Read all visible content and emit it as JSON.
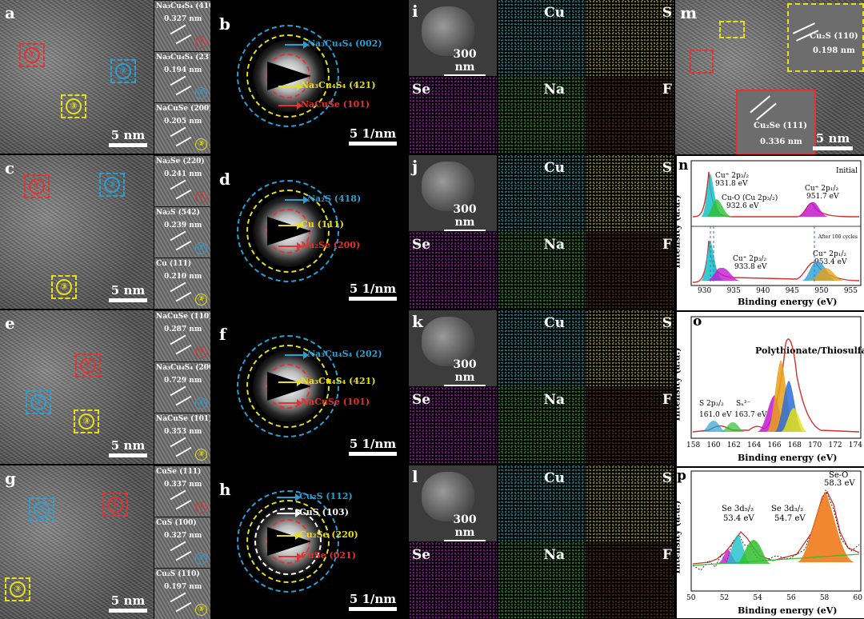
{
  "rows": [
    {
      "tem_label": "a",
      "saed_label": "b",
      "map_label": "i",
      "tem_scale": "5 nm",
      "saed_scale": "5 1/nm",
      "sem_scale": "300 nm",
      "insets": [
        {
          "phase": "Na₃Cu₄S₄ (410)",
          "d": "0.327 nm",
          "num": "①"
        },
        {
          "phase": "Na₃Cu₄S₄ (231)",
          "d": "0.194 nm",
          "num": "②"
        },
        {
          "phase": "NaCuSe (200)",
          "d": "0.205 nm",
          "num": "③"
        }
      ],
      "rings": [
        "Na₃Cu₄S₄ (002)",
        "Na₃Cu₄S₄ (421)",
        "NaCuSe (101)"
      ]
    },
    {
      "tem_label": "c",
      "saed_label": "d",
      "map_label": "j",
      "tem_scale": "5 nm",
      "saed_scale": "5 1/nm",
      "sem_scale": "300 nm",
      "insets": [
        {
          "phase": "Na₂Se (220)",
          "d": "0.241 nm",
          "num": "①"
        },
        {
          "phase": "Na₂S (542)",
          "d": "0.239 nm",
          "num": "②"
        },
        {
          "phase": "Cu (111)",
          "d": "0.210 nm",
          "num": "③"
        }
      ],
      "rings": [
        "Na₂S (418)",
        "Cu (111)",
        "Na₂Se (200)"
      ]
    },
    {
      "tem_label": "e",
      "saed_label": "f",
      "map_label": "k",
      "tem_scale": "5 nm",
      "saed_scale": "5 1/nm",
      "sem_scale": "300 nm",
      "insets": [
        {
          "phase": "NaCuSe (110)",
          "d": "0.287 nm",
          "num": "①"
        },
        {
          "phase": "Na₃Cu₄S₄ (200)",
          "d": "0.729 nm",
          "num": "②"
        },
        {
          "phase": "NaCuSe (101)",
          "d": "0.353 nm",
          "num": "③"
        }
      ],
      "rings": [
        "Na₃Cu₄S₄ (202)",
        "Na₃Cu₄S₄ (421)",
        "NaCuSe (101)"
      ]
    },
    {
      "tem_label": "g",
      "saed_label": "h",
      "map_label": "l",
      "tem_scale": "5 nm",
      "saed_scale": "5 1/nm",
      "sem_scale": "300 nm",
      "insets": [
        {
          "phase": "CuSe (111)",
          "d": "0.337 nm",
          "num": "①"
        },
        {
          "phase": "CuS (100)",
          "d": "0.327 nm",
          "num": "②"
        },
        {
          "phase": "Cu₂S (110)",
          "d": "0.197 nm",
          "num": "③"
        }
      ],
      "rings": [
        "Cu₂S (112)",
        "CuS (103)",
        "Cu₂Se (220)",
        "CuSe (021)"
      ]
    }
  ],
  "circled": {
    "one": "①",
    "two": "②",
    "three": "③"
  },
  "elements": {
    "cu": "Cu",
    "s": "S",
    "se": "Se",
    "na": "Na",
    "f": "F"
  },
  "colors": {
    "cu": "#19c0c8",
    "s": "#c7c21a",
    "se": "#c21ad0",
    "na": "#2fbf2f",
    "f": "#e07a1a",
    "red": "#e5312f",
    "blue": "#2a9fd6",
    "yellow": "#e8e01a"
  },
  "panel_m": {
    "label": "m",
    "scale": "5 nm",
    "yellow_inset": {
      "phase": "Cu₂S (110)",
      "d": "0.198 nm"
    },
    "red_inset": {
      "phase": "Cu₂Se (111)",
      "d": "0.336 nm"
    }
  },
  "panel_n": {
    "label": "n",
    "tag_initial": "Initial",
    "tag_after": "After 100 cycles",
    "xlabel": "Binding energy (eV)",
    "ylabel": "Intensity (a.u.)",
    "xticks": [
      "930",
      "935",
      "940",
      "945",
      "950",
      "955"
    ],
    "peaks_top": [
      "Cu⁺ 2p₃/₂",
      "931.8 eV",
      "Cu-O (Cu 2p₃/₂)",
      "932.6 eV",
      "Cu⁺ 2p₁/₂",
      "951.7 eV"
    ],
    "peaks_bottom": [
      "Cu⁺ 2p₃/₂",
      "933.8 eV",
      "Cu⁺ 2p₁/₂",
      "953.4 eV"
    ]
  },
  "panel_o": {
    "label": "o",
    "title": "Polythionate/Thiosulfate",
    "xlabel": "Binding energy (eV)",
    "ylabel": "Intensity (a.u.)",
    "xticks": [
      "158",
      "160",
      "162",
      "164",
      "166",
      "168",
      "170",
      "172",
      "174"
    ],
    "peaks": [
      "S 2p₃/₂",
      "161.0 eV",
      "Sₓ²⁻",
      "163.7 eV"
    ]
  },
  "panel_p": {
    "label": "p",
    "xlabel": "Binding energy (eV)",
    "ylabel": "Intensity (a.u.)",
    "xticks": [
      "50",
      "52",
      "54",
      "56",
      "58",
      "60"
    ],
    "peaks": [
      "Se 3d₅/₂",
      "53.4 eV",
      "Se 3d₃/₂",
      "54.7 eV",
      "Se-O",
      "58.3 eV"
    ]
  }
}
